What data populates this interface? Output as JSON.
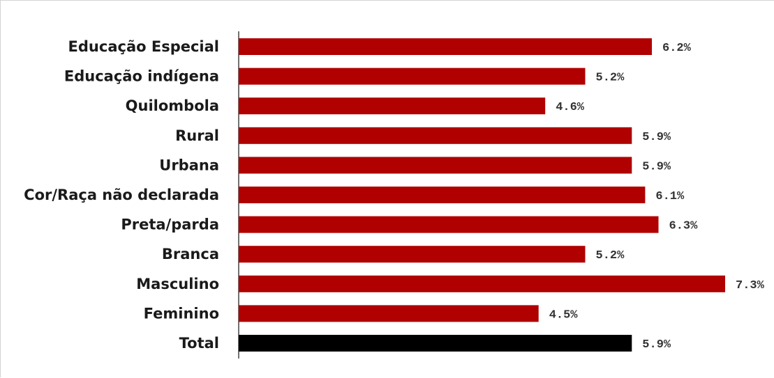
{
  "chart_data": {
    "type": "bar",
    "orientation": "horizontal",
    "categories": [
      "Educação Especial",
      "Educação indígena",
      "Quilombola",
      "Rural",
      "Urbana",
      "Cor/Raça não declarada",
      "Preta/parda",
      "Branca",
      "Masculino",
      "Feminino",
      "Total"
    ],
    "values": [
      6.2,
      5.2,
      4.6,
      5.9,
      5.9,
      6.1,
      6.3,
      5.2,
      7.3,
      4.5,
      5.9
    ],
    "value_labels": [
      "6.2%",
      "5.2%",
      "4.6%",
      "5.9%",
      "5.9%",
      "6.1%",
      "6.3%",
      "5.2%",
      "7.3%",
      "4.5%",
      "5.9%"
    ],
    "title": "",
    "xlabel": "",
    "ylabel": "",
    "xlim": [
      0,
      7.3
    ],
    "grid": false,
    "legend": "none",
    "colors": {
      "bar": "#b00000",
      "highlight_bar": "#000000",
      "axis": "#444444"
    },
    "highlight_category": "Total"
  }
}
